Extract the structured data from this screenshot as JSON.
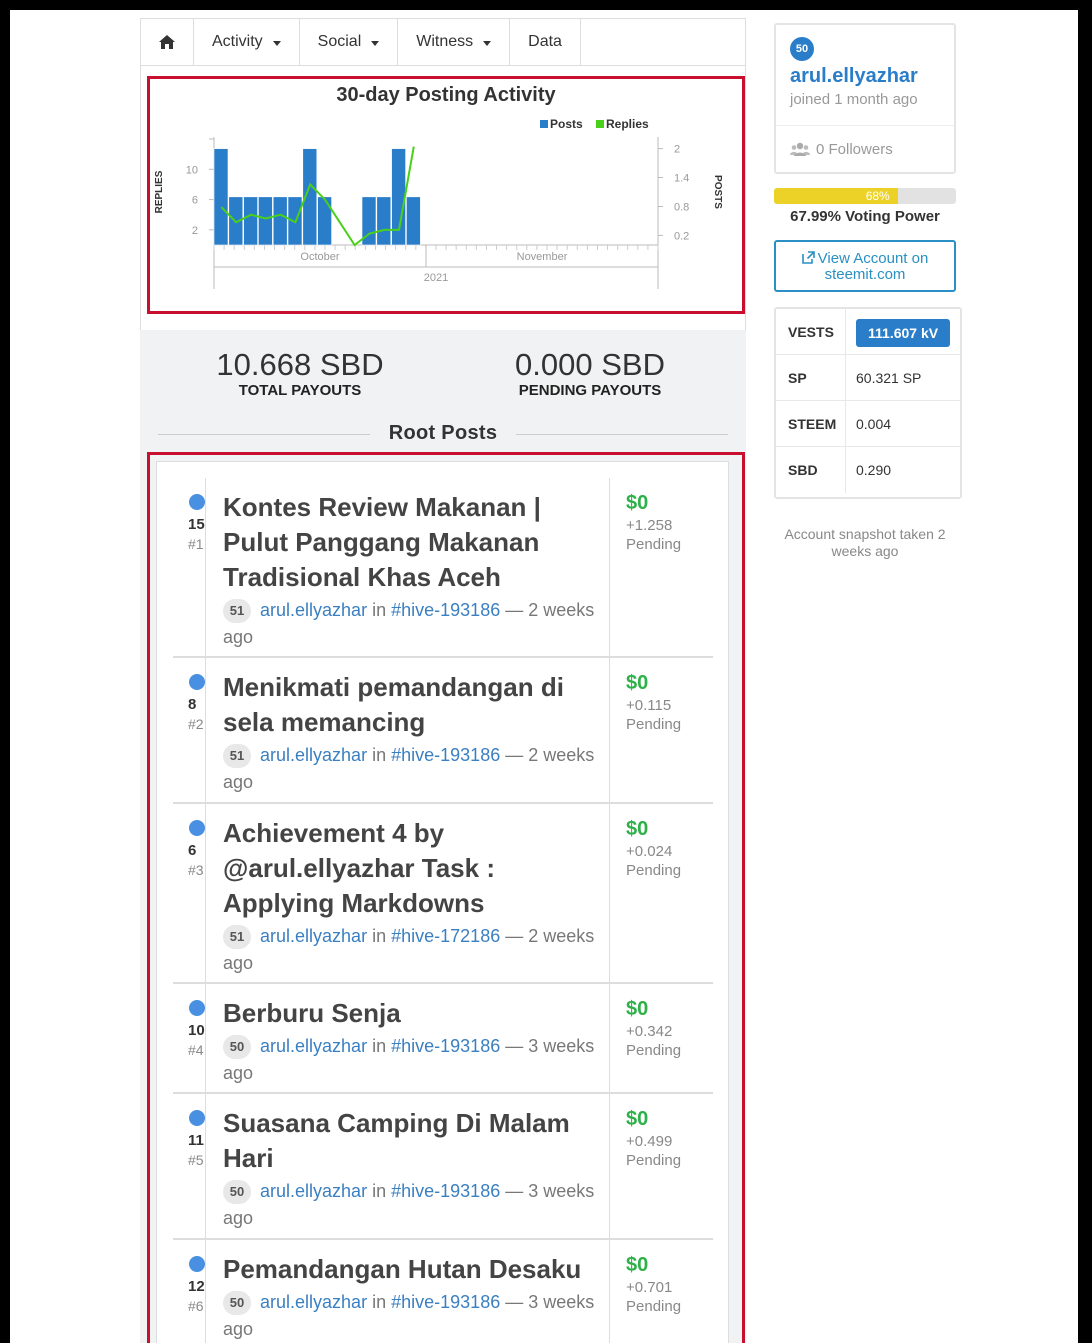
{
  "nav": {
    "home_icon": "home-icon",
    "items": [
      {
        "label": "Activity",
        "dropdown": true
      },
      {
        "label": "Social",
        "dropdown": true
      },
      {
        "label": "Witness",
        "dropdown": true
      },
      {
        "label": "Data",
        "dropdown": false
      }
    ]
  },
  "chart_data": {
    "type": "bar",
    "title": "30-day Posting Activity",
    "legend": [
      "Posts",
      "Replies"
    ],
    "legend_placement": "top-right",
    "colors": {
      "posts": "#2a7dc9",
      "replies": "#49d11a"
    },
    "left_axis": {
      "label": "REPLIES",
      "ticks": [
        2,
        6,
        10
      ]
    },
    "right_axis": {
      "label": "POSTS",
      "ticks": [
        0.2,
        0.8,
        1.4,
        2
      ]
    },
    "x_labels": [
      "October",
      "November"
    ],
    "x_year": "2021",
    "series": [
      {
        "name": "Posts",
        "axis": "right",
        "values": [
          2,
          1,
          1,
          1,
          1,
          1,
          2,
          1,
          0,
          0,
          1,
          1,
          2,
          1
        ]
      },
      {
        "name": "Replies",
        "axis": "left",
        "values": [
          5,
          3,
          4,
          3.5,
          4,
          3,
          8,
          6,
          3,
          0,
          1.5,
          2,
          2,
          13
        ]
      }
    ]
  },
  "payouts": {
    "total_amount": "10.668 SBD",
    "total_label": "TOTAL PAYOUTS",
    "pending_amount": "0.000 SBD",
    "pending_label": "PENDING PAYOUTS"
  },
  "root_posts_title": "Root Posts",
  "posts": [
    {
      "votes": "15",
      "rank": "#1",
      "title": "Kontes Review Makanan | Pulut Panggang Makanan Tradisional Khas Aceh",
      "rep": "51",
      "author": "arul.ellyazhar",
      "in": "in",
      "tag": "#hive-193186",
      "time": "— 2 weeks ago",
      "usd": "$0",
      "pending_amount": "+1.258",
      "pending_label": "Pending"
    },
    {
      "votes": "8",
      "rank": "#2",
      "title": "Menikmati pemandangan di sela memancing",
      "rep": "51",
      "author": "arul.ellyazhar",
      "in": "in",
      "tag": "#hive-193186",
      "time": "— 2 weeks ago",
      "usd": "$0",
      "pending_amount": "+0.115",
      "pending_label": "Pending"
    },
    {
      "votes": "6",
      "rank": "#3",
      "title": "Achievement 4 by @arul.ellyazhar Task : Applying Markdowns",
      "rep": "51",
      "author": "arul.ellyazhar",
      "in": "in",
      "tag": "#hive-172186",
      "time": "— 2 weeks ago",
      "usd": "$0",
      "pending_amount": "+0.024",
      "pending_label": "Pending"
    },
    {
      "votes": "10",
      "rank": "#4",
      "title": "Berburu Senja",
      "rep": "50",
      "author": "arul.ellyazhar",
      "in": "in",
      "tag": "#hive-193186",
      "time": "— 3 weeks ago",
      "usd": "$0",
      "pending_amount": "+0.342",
      "pending_label": "Pending"
    },
    {
      "votes": "11",
      "rank": "#5",
      "title": "Suasana Camping Di Malam Hari",
      "rep": "50",
      "author": "arul.ellyazhar",
      "in": "in",
      "tag": "#hive-193186",
      "time": "— 3 weeks ago",
      "usd": "$0",
      "pending_amount": "+0.499",
      "pending_label": "Pending"
    },
    {
      "votes": "12",
      "rank": "#6",
      "title": "Pemandangan Hutan Desaku",
      "rep": "50",
      "author": "arul.ellyazhar",
      "in": "in",
      "tag": "#hive-193186",
      "time": "— 3 weeks ago",
      "usd": "$0",
      "pending_amount": "+0.701",
      "pending_label": "Pending"
    }
  ],
  "profile": {
    "rep": "50",
    "username": "arul.ellyazhar",
    "joined": "joined 1 month ago",
    "followers": "0 Followers",
    "followers_icon": "users-icon"
  },
  "voting_power": {
    "bar_label": "68%",
    "fraction": 0.6799,
    "text": "67.99% Voting Power"
  },
  "view_account": {
    "label": "View Account on steemit.com",
    "icon": "external-link-icon"
  },
  "balances": [
    {
      "key": "VESTS",
      "value": "111.607 kV"
    },
    {
      "key": "SP",
      "value": "60.321 SP"
    },
    {
      "key": "STEEM",
      "value": "0.004"
    },
    {
      "key": "SBD",
      "value": "0.290"
    }
  ],
  "snapshot_note": "Account snapshot taken 2 weeks ago"
}
